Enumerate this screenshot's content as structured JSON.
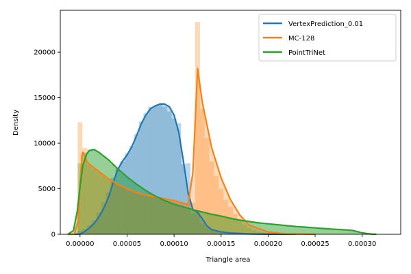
{
  "chart_data": {
    "type": "area",
    "xlabel": "Triangle area",
    "ylabel": "Density",
    "xlim": [
      -2.1e-05,
      0.000341
    ],
    "ylim": [
      0,
      24600
    ],
    "x_ticks": [
      0,
      5e-05,
      0.0001,
      0.00015,
      0.0002,
      0.00025,
      0.0003
    ],
    "x_tick_labels": [
      "0.00000",
      "0.00005",
      "0.00010",
      "0.00015",
      "0.00020",
      "0.00025",
      "0.00030"
    ],
    "y_ticks": [
      0,
      5000,
      10000,
      15000,
      20000
    ],
    "y_tick_labels": [
      "0",
      "5000",
      "10000",
      "15000",
      "20000"
    ],
    "legend_position": "top-right",
    "series": [
      {
        "name": "VertexPrediction_0.01",
        "color": "#1f77b4",
        "kde": [
          [
            -1.3e-05,
            0
          ],
          [
            -5e-06,
            5
          ],
          [
            0,
            30
          ],
          [
            5e-06,
            300
          ],
          [
            1e-05,
            700
          ],
          [
            1.5e-05,
            1200
          ],
          [
            2e-05,
            1900
          ],
          [
            2.5e-05,
            2800
          ],
          [
            3e-05,
            4000
          ],
          [
            3.5e-05,
            5600
          ],
          [
            4e-05,
            7100
          ],
          [
            4.5e-05,
            8000
          ],
          [
            5e-05,
            8700
          ],
          [
            5.5e-05,
            9600
          ],
          [
            6e-05,
            10800
          ],
          [
            6.5e-05,
            12100
          ],
          [
            7e-05,
            13100
          ],
          [
            7.5e-05,
            13800
          ],
          [
            8e-05,
            14100
          ],
          [
            8.5e-05,
            14300
          ],
          [
            9e-05,
            14300
          ],
          [
            9.5e-05,
            14000
          ],
          [
            0.0001,
            13100
          ],
          [
            0.000105,
            11200
          ],
          [
            0.00011,
            8000
          ],
          [
            0.000115,
            4500
          ],
          [
            0.00012,
            2700
          ],
          [
            0.000125,
            2400
          ],
          [
            0.00013,
            1700
          ],
          [
            0.000135,
            900
          ],
          [
            0.00014,
            500
          ],
          [
            0.00015,
            260
          ],
          [
            0.00016,
            130
          ],
          [
            0.00018,
            40
          ],
          [
            0.0002,
            8
          ],
          [
            0.00023,
            0
          ]
        ],
        "hist_bins": [
          [
            0,
            400
          ],
          [
            5e-06,
            600
          ],
          [
            1e-05,
            1000
          ],
          [
            1.5e-05,
            1500
          ],
          [
            2e-05,
            2400
          ],
          [
            2.5e-05,
            3500
          ],
          [
            3e-05,
            4600
          ],
          [
            3.5e-05,
            6200
          ],
          [
            4e-05,
            7300
          ],
          [
            4.5e-05,
            8000
          ],
          [
            5e-05,
            8900
          ],
          [
            5.5e-05,
            9700
          ],
          [
            6e-05,
            11000
          ],
          [
            6.5e-05,
            12400
          ],
          [
            7e-05,
            13300
          ],
          [
            7.5e-05,
            14000
          ],
          [
            8e-05,
            14100
          ],
          [
            8.5e-05,
            14300
          ],
          [
            9e-05,
            14000
          ],
          [
            9.5e-05,
            13500
          ],
          [
            0.0001,
            12700
          ],
          [
            0.000105,
            12200
          ],
          [
            0.00011,
            7700
          ],
          [
            0.000115,
            7800
          ],
          [
            0.00012,
            2300
          ],
          [
            0.000125,
            2400
          ],
          [
            0.00013,
            1200
          ],
          [
            0.000135,
            700
          ],
          [
            0.00014,
            400
          ],
          [
            0.000145,
            250
          ],
          [
            0.00015,
            150
          ],
          [
            0.000155,
            100
          ]
        ]
      },
      {
        "name": "MC-128",
        "color": "#ff7f0e",
        "kde": [
          [
            -1.3e-05,
            0
          ],
          [
            -6e-06,
            0
          ],
          [
            -2e-06,
            1500
          ],
          [
            0,
            5500
          ],
          [
            2e-06,
            8600
          ],
          [
            3e-06,
            9000
          ],
          [
            5e-06,
            8600
          ],
          [
            7e-06,
            8000
          ],
          [
            1e-05,
            7700
          ],
          [
            2e-05,
            6900
          ],
          [
            3e-05,
            6100
          ],
          [
            4e-05,
            5500
          ],
          [
            5e-05,
            5000
          ],
          [
            6e-05,
            4600
          ],
          [
            7e-05,
            4300
          ],
          [
            8e-05,
            4100
          ],
          [
            9e-05,
            3900
          ],
          [
            0.0001,
            3700
          ],
          [
            0.00011,
            3400
          ],
          [
            0.000115,
            3300
          ],
          [
            0.00012,
            6800
          ],
          [
            0.000125,
            18200
          ],
          [
            0.00013,
            14500
          ],
          [
            0.00014,
            9500
          ],
          [
            0.00015,
            6200
          ],
          [
            0.00016,
            3800
          ],
          [
            0.00017,
            2100
          ],
          [
            0.00018,
            1000
          ],
          [
            0.0002,
            250
          ],
          [
            0.00022,
            40
          ],
          [
            0.00025,
            0
          ]
        ],
        "hist_bins": [
          [
            0,
            12300
          ],
          [
            5e-06,
            9500
          ],
          [
            1e-05,
            7600
          ],
          [
            1.5e-05,
            7200
          ],
          [
            2e-05,
            6800
          ],
          [
            2.5e-05,
            6500
          ],
          [
            3e-05,
            6100
          ],
          [
            3.5e-05,
            5800
          ],
          [
            4e-05,
            5500
          ],
          [
            4.5e-05,
            5200
          ],
          [
            5e-05,
            5000
          ],
          [
            5.5e-05,
            4800
          ],
          [
            6e-05,
            4600
          ],
          [
            6.5e-05,
            4400
          ],
          [
            7e-05,
            4300
          ],
          [
            7.5e-05,
            4200
          ],
          [
            8e-05,
            4100
          ],
          [
            8.5e-05,
            4000
          ],
          [
            9e-05,
            3900
          ],
          [
            9.5e-05,
            3800
          ],
          [
            0.0001,
            3700
          ],
          [
            0.000105,
            3500
          ],
          [
            0.00011,
            3400
          ],
          [
            0.000115,
            3400
          ],
          [
            0.00012,
            3500
          ],
          [
            0.000125,
            23300
          ],
          [
            0.00013,
            13800
          ],
          [
            0.000135,
            10600
          ],
          [
            0.00014,
            8000
          ],
          [
            0.000145,
            6400
          ],
          [
            0.00015,
            5000
          ],
          [
            0.000155,
            3800
          ],
          [
            0.00016,
            3000
          ],
          [
            0.000165,
            2200
          ],
          [
            0.00017,
            1500
          ],
          [
            0.000175,
            1100
          ],
          [
            0.00018,
            700
          ],
          [
            0.000185,
            450
          ],
          [
            0.00019,
            300
          ],
          [
            0.000195,
            200
          ],
          [
            0.0002,
            120
          ]
        ]
      },
      {
        "name": "PointTriNet",
        "color": "#2ca02c",
        "kde": [
          [
            -1.3e-05,
            0
          ],
          [
            -7e-06,
            400
          ],
          [
            -3e-06,
            2500
          ],
          [
            0,
            5200
          ],
          [
            3e-06,
            7600
          ],
          [
            7e-06,
            8800
          ],
          [
            1e-05,
            9200
          ],
          [
            1.5e-05,
            9300
          ],
          [
            2e-05,
            9000
          ],
          [
            3e-05,
            8200
          ],
          [
            4e-05,
            7200
          ],
          [
            5e-05,
            6300
          ],
          [
            6e-05,
            5500
          ],
          [
            7e-05,
            4800
          ],
          [
            8e-05,
            4200
          ],
          [
            9e-05,
            3700
          ],
          [
            0.0001,
            3300
          ],
          [
            0.00011,
            3000
          ],
          [
            0.00012,
            2700
          ],
          [
            0.00013,
            2450
          ],
          [
            0.00014,
            2200
          ],
          [
            0.00015,
            2000
          ],
          [
            0.00016,
            1750
          ],
          [
            0.00017,
            1550
          ],
          [
            0.00018,
            1400
          ],
          [
            0.00019,
            1250
          ],
          [
            0.0002,
            1150
          ],
          [
            0.00021,
            1050
          ],
          [
            0.00022,
            950
          ],
          [
            0.00023,
            850
          ],
          [
            0.00024,
            780
          ],
          [
            0.00025,
            700
          ],
          [
            0.00026,
            620
          ],
          [
            0.00027,
            560
          ],
          [
            0.00028,
            500
          ],
          [
            0.00029,
            420
          ],
          [
            0.0003,
            150
          ],
          [
            0.00031,
            20
          ],
          [
            0.000315,
            0
          ]
        ],
        "hist_bins": [
          [
            0,
            7800
          ],
          [
            5e-06,
            9000
          ],
          [
            1e-05,
            9300
          ],
          [
            1.5e-05,
            9300
          ],
          [
            2e-05,
            9000
          ],
          [
            2.5e-05,
            8600
          ],
          [
            3e-05,
            8200
          ],
          [
            3.5e-05,
            7700
          ],
          [
            4e-05,
            7200
          ],
          [
            4.5e-05,
            6700
          ],
          [
            5e-05,
            6300
          ],
          [
            5.5e-05,
            5900
          ],
          [
            6e-05,
            5500
          ],
          [
            6.5e-05,
            5100
          ],
          [
            7e-05,
            4800
          ],
          [
            7.5e-05,
            4500
          ],
          [
            8e-05,
            4200
          ],
          [
            8.5e-05,
            3950
          ],
          [
            9e-05,
            3700
          ],
          [
            9.5e-05,
            3500
          ],
          [
            0.0001,
            3300
          ],
          [
            0.000105,
            3150
          ],
          [
            0.00011,
            3000
          ],
          [
            0.000115,
            2850
          ],
          [
            0.00012,
            2700
          ],
          [
            0.000125,
            2550
          ],
          [
            0.00013,
            2450
          ],
          [
            0.000135,
            2300
          ],
          [
            0.00014,
            2200
          ],
          [
            0.000145,
            2100
          ],
          [
            0.00015,
            2000
          ],
          [
            0.000155,
            1850
          ],
          [
            0.00016,
            1750
          ],
          [
            0.000165,
            1650
          ],
          [
            0.00017,
            1550
          ],
          [
            0.000175,
            1480
          ],
          [
            0.00018,
            1400
          ],
          [
            0.000185,
            1320
          ],
          [
            0.00019,
            1250
          ],
          [
            0.000195,
            1200
          ],
          [
            0.0002,
            1150
          ],
          [
            0.000205,
            1100
          ],
          [
            0.00021,
            1050
          ],
          [
            0.000215,
            1000
          ],
          [
            0.00022,
            950
          ],
          [
            0.000225,
            900
          ],
          [
            0.00023,
            850
          ],
          [
            0.000235,
            820
          ],
          [
            0.00024,
            780
          ],
          [
            0.000245,
            740
          ],
          [
            0.00025,
            700
          ],
          [
            0.000255,
            660
          ],
          [
            0.00026,
            620
          ],
          [
            0.000265,
            590
          ],
          [
            0.00027,
            560
          ],
          [
            0.000275,
            530
          ],
          [
            0.00028,
            500
          ],
          [
            0.000285,
            460
          ],
          [
            0.00029,
            420
          ],
          [
            0.000295,
            380
          ]
        ]
      }
    ]
  }
}
